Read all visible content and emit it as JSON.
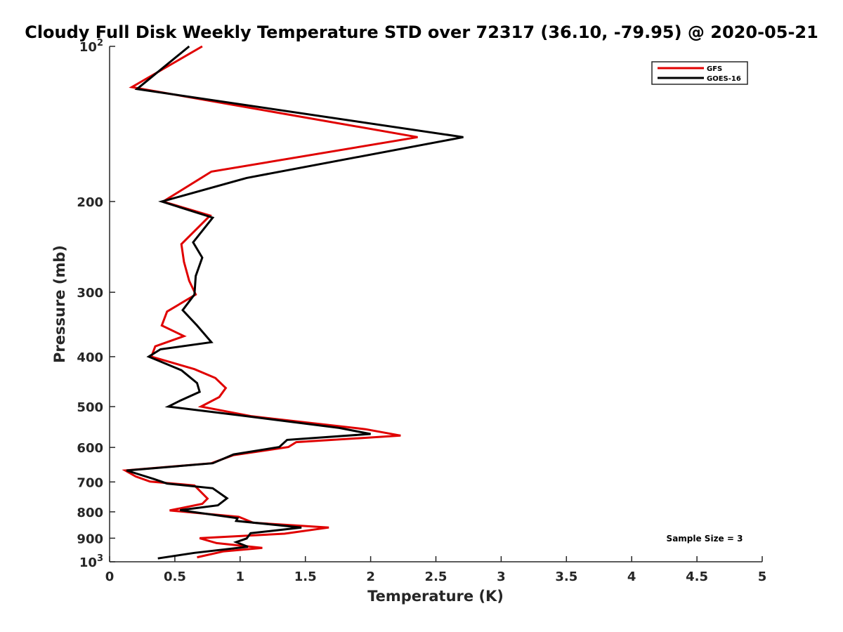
{
  "chart_data": {
    "type": "line",
    "title": "Cloudy Full Disk Weekly Temperature STD over 72317 (36.10, -79.95) @ 2020-05-21",
    "xlabel": "Temperature (K)",
    "ylabel": "Pressure (mb)",
    "xlim": [
      0,
      5
    ],
    "ylim": [
      100,
      1000
    ],
    "yscale": "log",
    "y_reversed": true,
    "x_ticks": [
      0,
      0.5,
      1,
      1.5,
      2,
      2.5,
      3,
      3.5,
      4,
      4.5,
      5
    ],
    "x_tick_labels": [
      "0",
      "0.5",
      "1",
      "1.5",
      "2",
      "2.5",
      "3",
      "3.5",
      "4",
      "4.5",
      "5"
    ],
    "y_ticks": [
      100,
      200,
      300,
      400,
      500,
      600,
      700,
      800,
      900,
      1000
    ],
    "y_tick_labels": [
      {
        "base": "10",
        "exp": "2"
      },
      {
        "base": "200",
        "exp": ""
      },
      {
        "base": "300",
        "exp": ""
      },
      {
        "base": "400",
        "exp": ""
      },
      {
        "base": "500",
        "exp": ""
      },
      {
        "base": "600",
        "exp": ""
      },
      {
        "base": "700",
        "exp": ""
      },
      {
        "base": "800",
        "exp": ""
      },
      {
        "base": "900",
        "exp": ""
      },
      {
        "base": "10",
        "exp": "3"
      }
    ],
    "legend_position": "top-right",
    "annotation": "Sample Size = 3",
    "series": [
      {
        "name": "GFS",
        "color": "#e00000",
        "points": [
          [
            0.71,
            100
          ],
          [
            0.17,
            120
          ],
          [
            2.36,
            150
          ],
          [
            0.78,
            175
          ],
          [
            0.41,
            200
          ],
          [
            0.77,
            213
          ],
          [
            0.55,
            242
          ],
          [
            0.57,
            262
          ],
          [
            0.61,
            285
          ],
          [
            0.66,
            303
          ],
          [
            0.44,
            327
          ],
          [
            0.4,
            348
          ],
          [
            0.57,
            365
          ],
          [
            0.35,
            382
          ],
          [
            0.32,
            400
          ],
          [
            0.65,
            423
          ],
          [
            0.81,
            440
          ],
          [
            0.89,
            460
          ],
          [
            0.84,
            479
          ],
          [
            0.7,
            500
          ],
          [
            1.09,
            522
          ],
          [
            1.96,
            553
          ],
          [
            2.23,
            569
          ],
          [
            1.43,
            586
          ],
          [
            1.37,
            599
          ],
          [
            0.95,
            621
          ],
          [
            0.78,
            644
          ],
          [
            0.12,
            665
          ],
          [
            0.2,
            683
          ],
          [
            0.31,
            699
          ],
          [
            0.65,
            711
          ],
          [
            0.75,
            754
          ],
          [
            0.71,
            772
          ],
          [
            0.46,
            795
          ],
          [
            0.99,
            818
          ],
          [
            1.1,
            840
          ],
          [
            1.68,
            858
          ],
          [
            1.34,
            882
          ],
          [
            0.69,
            900
          ],
          [
            0.82,
            920
          ],
          [
            1.17,
            940
          ],
          [
            0.87,
            955
          ],
          [
            0.67,
            980
          ]
        ]
      },
      {
        "name": "GOES-16",
        "color": "#000000",
        "points": [
          [
            0.61,
            100
          ],
          [
            0.21,
            121
          ],
          [
            2.71,
            150
          ],
          [
            1.05,
            180
          ],
          [
            0.4,
            200
          ],
          [
            0.79,
            215
          ],
          [
            0.64,
            240
          ],
          [
            0.71,
            257
          ],
          [
            0.66,
            279
          ],
          [
            0.65,
            303
          ],
          [
            0.56,
            325
          ],
          [
            0.67,
            348
          ],
          [
            0.78,
            375
          ],
          [
            0.39,
            387
          ],
          [
            0.3,
            400
          ],
          [
            0.55,
            425
          ],
          [
            0.67,
            450
          ],
          [
            0.69,
            468
          ],
          [
            0.54,
            487
          ],
          [
            0.45,
            500
          ],
          [
            1.0,
            520
          ],
          [
            1.76,
            550
          ],
          [
            2.0,
            565
          ],
          [
            1.36,
            580
          ],
          [
            1.3,
            599
          ],
          [
            0.95,
            619
          ],
          [
            0.79,
            644
          ],
          [
            0.13,
            665
          ],
          [
            0.34,
            691
          ],
          [
            0.44,
            705
          ],
          [
            0.79,
            720
          ],
          [
            0.9,
            753
          ],
          [
            0.83,
            777
          ],
          [
            0.54,
            794
          ],
          [
            0.98,
            823
          ],
          [
            0.97,
            833
          ],
          [
            1.47,
            858
          ],
          [
            1.08,
            880
          ],
          [
            1.05,
            901
          ],
          [
            0.97,
            916
          ],
          [
            1.06,
            935
          ],
          [
            0.65,
            961
          ],
          [
            0.37,
            985
          ]
        ]
      }
    ]
  }
}
